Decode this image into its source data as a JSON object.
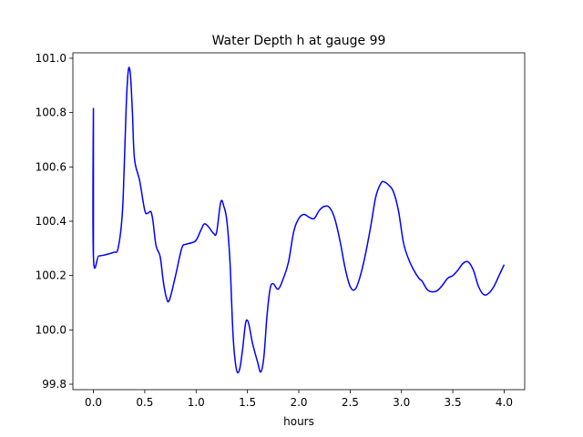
{
  "chart_data": {
    "type": "line",
    "title": "Water Depth h at gauge 99",
    "xlabel": "hours",
    "ylabel": "",
    "xlim": [
      -0.2,
      4.2
    ],
    "ylim": [
      99.78,
      101.02
    ],
    "xticks": [
      0.0,
      0.5,
      1.0,
      1.5,
      2.0,
      2.5,
      3.0,
      3.5,
      4.0
    ],
    "xtick_labels": [
      "0.0",
      "0.5",
      "1.0",
      "1.5",
      "2.0",
      "2.5",
      "3.0",
      "3.5",
      "4.0"
    ],
    "yticks": [
      99.8,
      100.0,
      100.2,
      100.4,
      100.6,
      100.8,
      101.0
    ],
    "ytick_labels": [
      "99.8",
      "100.0",
      "100.2",
      "100.4",
      "100.6",
      "100.8",
      "101.0"
    ],
    "grid": false,
    "series": [
      {
        "color": "#0000ff",
        "x": [
          0.0,
          0.0,
          0.0,
          0.05,
          0.1,
          0.15,
          0.2,
          0.24,
          0.28,
          0.3,
          0.32,
          0.34,
          0.36,
          0.38,
          0.4,
          0.45,
          0.5,
          0.53,
          0.56,
          0.58,
          0.61,
          0.65,
          0.68,
          0.71,
          0.74,
          0.8,
          0.86,
          0.9,
          0.95,
          1.0,
          1.05,
          1.08,
          1.12,
          1.17,
          1.2,
          1.24,
          1.27,
          1.3,
          1.33,
          1.36,
          1.39,
          1.42,
          1.45,
          1.48,
          1.5,
          1.52,
          1.55,
          1.6,
          1.63,
          1.66,
          1.69,
          1.72,
          1.75,
          1.8,
          1.85,
          1.9,
          1.95,
          2.0,
          2.05,
          2.1,
          2.15,
          2.2,
          2.25,
          2.3,
          2.35,
          2.4,
          2.45,
          2.5,
          2.55,
          2.6,
          2.65,
          2.7,
          2.75,
          2.8,
          2.83,
          2.87,
          2.92,
          2.97,
          3.02,
          3.07,
          3.12,
          3.17,
          3.2,
          3.23,
          3.26,
          3.3,
          3.35,
          3.4,
          3.45,
          3.5,
          3.55,
          3.6,
          3.65,
          3.7,
          3.75,
          3.8,
          3.85,
          3.9,
          3.95,
          4.0
        ],
        "y": [
          100.27,
          100.815,
          100.27,
          100.272,
          100.275,
          100.28,
          100.286,
          100.3,
          100.42,
          100.6,
          100.83,
          100.955,
          100.94,
          100.8,
          100.63,
          100.55,
          100.44,
          100.43,
          100.435,
          100.4,
          100.31,
          100.27,
          100.18,
          100.12,
          100.11,
          100.2,
          100.3,
          100.315,
          100.32,
          100.33,
          100.37,
          100.39,
          100.38,
          100.355,
          100.36,
          100.47,
          100.455,
          100.4,
          100.25,
          99.98,
          99.86,
          99.85,
          99.92,
          100.02,
          100.035,
          100.01,
          99.95,
          99.88,
          99.845,
          99.9,
          100.05,
          100.15,
          100.17,
          100.15,
          100.19,
          100.25,
          100.36,
          100.41,
          100.425,
          100.415,
          100.41,
          100.44,
          100.455,
          100.45,
          100.41,
          100.33,
          100.23,
          100.16,
          100.15,
          100.2,
          100.28,
          100.38,
          100.49,
          100.54,
          100.545,
          100.535,
          100.51,
          100.44,
          100.32,
          100.26,
          100.22,
          100.19,
          100.18,
          100.16,
          100.145,
          100.14,
          100.145,
          100.165,
          100.19,
          100.2,
          100.22,
          100.245,
          100.25,
          100.22,
          100.16,
          100.13,
          100.135,
          100.16,
          100.2,
          100.24
        ]
      }
    ]
  }
}
